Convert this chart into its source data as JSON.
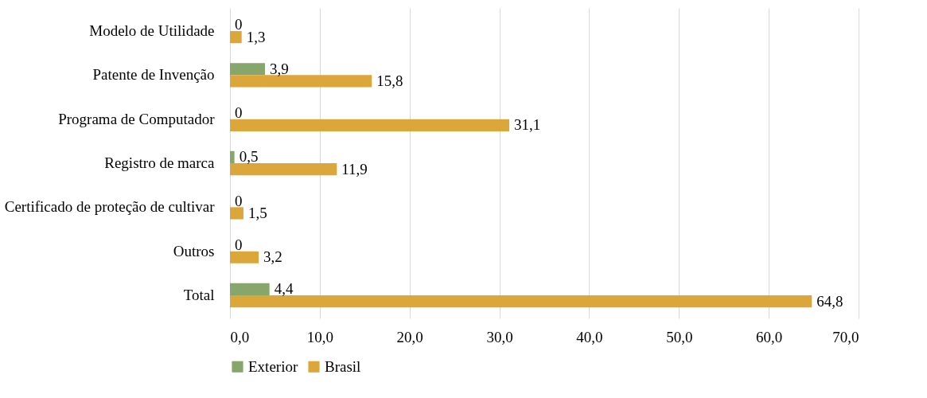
{
  "chart_data": {
    "type": "bar",
    "orientation": "horizontal",
    "categories": [
      "Modelo de Utilidade",
      "Patente de Invenção",
      "Programa de Computador",
      "Registro de marca",
      "Certificado de proteção de cultivar",
      "Outros",
      "Total"
    ],
    "series": [
      {
        "name": "Exterior",
        "color": "#87a66b",
        "values": [
          0,
          3.9,
          0,
          0.5,
          0,
          0,
          4.4
        ],
        "value_labels": [
          "0",
          "3,9",
          "0",
          "0,5",
          "0",
          "0",
          "4,4"
        ]
      },
      {
        "name": "Brasil",
        "color": "#dba63a",
        "values": [
          1.3,
          15.8,
          31.1,
          11.9,
          1.5,
          3.2,
          64.8
        ],
        "value_labels": [
          "1,3",
          "15,8",
          "31,1",
          "11,9",
          "1,5",
          "3,2",
          "64,8"
        ]
      }
    ],
    "xlim": [
      0,
      70
    ],
    "xticks": [
      {
        "value": 0,
        "label": "0,0"
      },
      {
        "value": 10,
        "label": "10,0"
      },
      {
        "value": 20,
        "label": "20,0"
      },
      {
        "value": 30,
        "label": "30,0"
      },
      {
        "value": 40,
        "label": "40,0"
      },
      {
        "value": 50,
        "label": "50,0"
      },
      {
        "value": 60,
        "label": "60,0"
      },
      {
        "value": 70,
        "label": "70,0"
      }
    ],
    "grid": "x",
    "legend": "bottom"
  }
}
